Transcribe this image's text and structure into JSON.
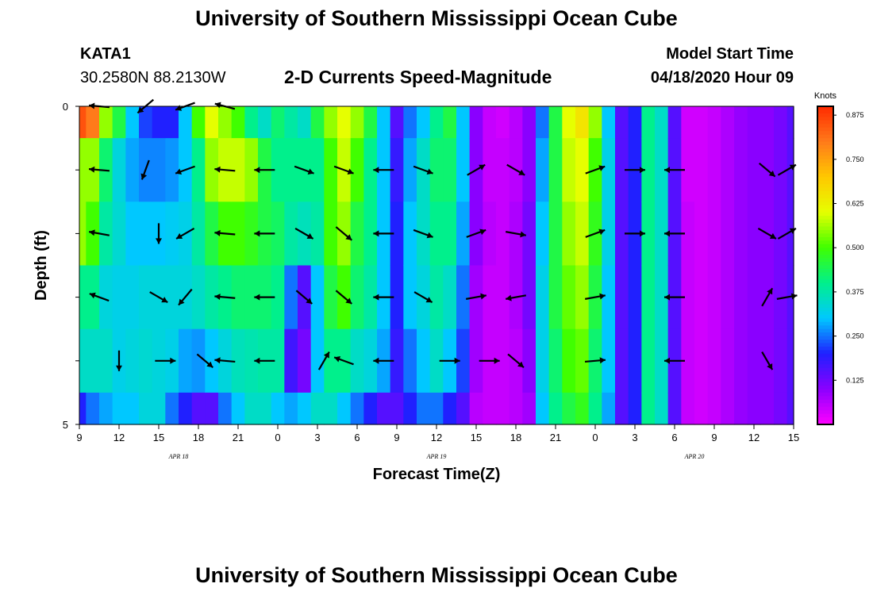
{
  "header": {
    "title": "University of Southern Mississippi Ocean Cube",
    "station": "KATA1",
    "coords": "30.2580N 88.2130W",
    "subtitle": "2-D Currents Speed-Magnitude",
    "model_label": "Model Start Time",
    "model_time": "04/18/2020 Hour 09"
  },
  "footer": {
    "title": "University of Southern Mississippi Ocean Cube"
  },
  "colorbar": {
    "unit": "Knots",
    "ticks": [
      "0.875",
      "0.750",
      "0.625",
      "0.500",
      "0.375",
      "0.250",
      "0.125"
    ],
    "min": 0.0,
    "max": 0.9,
    "colors": [
      "#ff00ff",
      "#8a00ff",
      "#2020ff",
      "#00c8ff",
      "#00f08c",
      "#40ff00",
      "#e6ff00",
      "#ffc800",
      "#ff7a1a",
      "#ff2a00"
    ]
  },
  "chart_data": {
    "type": "heatmap",
    "title": "2-D Currents Speed-Magnitude",
    "xlabel": "Forecast Time(Z)",
    "ylabel": "Depth (ft)",
    "x_tick_labels": [
      "9",
      "12",
      "15",
      "18",
      "21",
      "0",
      "3",
      "6",
      "9",
      "12",
      "15",
      "18",
      "21",
      "0",
      "3",
      "6",
      "9",
      "12",
      "15"
    ],
    "x_range_hours": [
      0,
      54
    ],
    "y_tick_labels": [
      "0",
      "5"
    ],
    "y_range": [
      0,
      5
    ],
    "date_labels": [
      {
        "label": "APR 18",
        "hour": 7.5
      },
      {
        "label": "APR 19",
        "hour": 27
      },
      {
        "label": "APR 20",
        "hour": 46.5
      }
    ],
    "depths": [
      0,
      1,
      2,
      3,
      4,
      5
    ],
    "speed_columns": [
      {
        "hour": 0,
        "speeds": [
          0.85,
          0.55,
          0.55,
          0.4,
          0.35,
          0.2
        ]
      },
      {
        "hour": 1,
        "speeds": [
          0.8,
          0.55,
          0.5,
          0.4,
          0.35,
          0.25
        ]
      },
      {
        "hour": 2,
        "speeds": [
          0.55,
          0.42,
          0.38,
          0.33,
          0.35,
          0.28
        ]
      },
      {
        "hour": 3,
        "speeds": [
          0.45,
          0.33,
          0.34,
          0.32,
          0.32,
          0.3
        ]
      },
      {
        "hour": 4,
        "speeds": [
          0.3,
          0.28,
          0.3,
          0.32,
          0.33,
          0.3
        ]
      },
      {
        "hour": 5,
        "speeds": [
          0.22,
          0.26,
          0.3,
          0.33,
          0.34,
          0.33
        ]
      },
      {
        "hour": 6,
        "speeds": [
          0.2,
          0.26,
          0.3,
          0.33,
          0.33,
          0.33
        ]
      },
      {
        "hour": 7,
        "speeds": [
          0.2,
          0.27,
          0.31,
          0.33,
          0.32,
          0.25
        ]
      },
      {
        "hour": 8,
        "speeds": [
          0.3,
          0.3,
          0.32,
          0.33,
          0.28,
          0.2
        ]
      },
      {
        "hour": 9,
        "speeds": [
          0.5,
          0.4,
          0.38,
          0.35,
          0.27,
          0.15
        ]
      },
      {
        "hour": 10,
        "speeds": [
          0.6,
          0.55,
          0.45,
          0.38,
          0.3,
          0.15
        ]
      },
      {
        "hour": 11,
        "speeds": [
          0.55,
          0.58,
          0.5,
          0.4,
          0.33,
          0.25
        ]
      },
      {
        "hour": 12,
        "speeds": [
          0.5,
          0.58,
          0.5,
          0.42,
          0.36,
          0.3
        ]
      },
      {
        "hour": 13,
        "speeds": [
          0.4,
          0.55,
          0.48,
          0.42,
          0.37,
          0.35
        ]
      },
      {
        "hour": 14,
        "speeds": [
          0.35,
          0.45,
          0.45,
          0.42,
          0.38,
          0.35
        ]
      },
      {
        "hour": 15,
        "speeds": [
          0.42,
          0.4,
          0.43,
          0.4,
          0.38,
          0.3
        ]
      },
      {
        "hour": 16,
        "speeds": [
          0.38,
          0.4,
          0.38,
          0.25,
          0.17,
          0.28
        ]
      },
      {
        "hour": 17,
        "speeds": [
          0.35,
          0.4,
          0.36,
          0.15,
          0.12,
          0.3
        ]
      },
      {
        "hour": 18,
        "speeds": [
          0.45,
          0.4,
          0.38,
          0.3,
          0.3,
          0.35
        ]
      },
      {
        "hour": 19,
        "speeds": [
          0.55,
          0.5,
          0.5,
          0.45,
          0.4,
          0.35
        ]
      },
      {
        "hour": 20,
        "speeds": [
          0.6,
          0.58,
          0.55,
          0.5,
          0.4,
          0.3
        ]
      },
      {
        "hour": 21,
        "speeds": [
          0.55,
          0.5,
          0.45,
          0.42,
          0.35,
          0.25
        ]
      },
      {
        "hour": 22,
        "speeds": [
          0.45,
          0.4,
          0.4,
          0.38,
          0.33,
          0.2
        ]
      },
      {
        "hour": 23,
        "speeds": [
          0.3,
          0.3,
          0.3,
          0.3,
          0.28,
          0.15
        ]
      },
      {
        "hour": 24,
        "speeds": [
          0.15,
          0.18,
          0.2,
          0.2,
          0.18,
          0.15
        ]
      },
      {
        "hour": 25,
        "speeds": [
          0.25,
          0.28,
          0.3,
          0.3,
          0.25,
          0.2
        ]
      },
      {
        "hour": 26,
        "speeds": [
          0.3,
          0.35,
          0.35,
          0.33,
          0.3,
          0.25
        ]
      },
      {
        "hour": 27,
        "speeds": [
          0.4,
          0.42,
          0.4,
          0.38,
          0.35,
          0.25
        ]
      },
      {
        "hour": 28,
        "speeds": [
          0.45,
          0.42,
          0.4,
          0.35,
          0.3,
          0.2
        ]
      },
      {
        "hour": 29,
        "speeds": [
          0.3,
          0.3,
          0.28,
          0.25,
          0.22,
          0.15
        ]
      },
      {
        "hour": 30,
        "speeds": [
          0.1,
          0.1,
          0.1,
          0.08,
          0.08,
          0.06
        ]
      },
      {
        "hour": 31,
        "speeds": [
          0.05,
          0.05,
          0.06,
          0.05,
          0.05,
          0.05
        ]
      },
      {
        "hour": 32,
        "speeds": [
          0.04,
          0.05,
          0.05,
          0.05,
          0.05,
          0.05
        ]
      },
      {
        "hour": 33,
        "speeds": [
          0.06,
          0.06,
          0.07,
          0.07,
          0.06,
          0.06
        ]
      },
      {
        "hour": 34,
        "speeds": [
          0.1,
          0.1,
          0.12,
          0.12,
          0.1,
          0.08
        ]
      },
      {
        "hour": 35,
        "speeds": [
          0.25,
          0.28,
          0.3,
          0.32,
          0.32,
          0.3
        ]
      },
      {
        "hour": 36,
        "speeds": [
          0.45,
          0.45,
          0.45,
          0.45,
          0.42,
          0.4
        ]
      },
      {
        "hour": 37,
        "speeds": [
          0.6,
          0.58,
          0.55,
          0.52,
          0.5,
          0.45
        ]
      },
      {
        "hour": 38,
        "speeds": [
          0.65,
          0.6,
          0.58,
          0.55,
          0.52,
          0.48
        ]
      },
      {
        "hour": 39,
        "speeds": [
          0.55,
          0.5,
          0.48,
          0.45,
          0.42,
          0.4
        ]
      },
      {
        "hour": 40,
        "speeds": [
          0.3,
          0.32,
          0.32,
          0.3,
          0.3,
          0.28
        ]
      },
      {
        "hour": 41,
        "speeds": [
          0.15,
          0.15,
          0.15,
          0.15,
          0.15,
          0.15
        ]
      },
      {
        "hour": 42,
        "speeds": [
          0.2,
          0.2,
          0.2,
          0.2,
          0.2,
          0.2
        ]
      },
      {
        "hour": 43,
        "speeds": [
          0.4,
          0.4,
          0.4,
          0.4,
          0.4,
          0.4
        ]
      },
      {
        "hour": 44,
        "speeds": [
          0.35,
          0.35,
          0.35,
          0.35,
          0.35,
          0.35
        ]
      },
      {
        "hour": 45,
        "speeds": [
          0.15,
          0.15,
          0.15,
          0.15,
          0.15,
          0.15
        ]
      },
      {
        "hour": 46,
        "speeds": [
          0.04,
          0.04,
          0.05,
          0.05,
          0.05,
          0.05
        ]
      },
      {
        "hour": 47,
        "speeds": [
          0.04,
          0.04,
          0.04,
          0.04,
          0.04,
          0.04
        ]
      },
      {
        "hour": 48,
        "speeds": [
          0.05,
          0.05,
          0.05,
          0.05,
          0.05,
          0.05
        ]
      },
      {
        "hour": 49,
        "speeds": [
          0.07,
          0.07,
          0.07,
          0.07,
          0.07,
          0.07
        ]
      },
      {
        "hour": 50,
        "speeds": [
          0.09,
          0.09,
          0.09,
          0.09,
          0.09,
          0.09
        ]
      },
      {
        "hour": 51,
        "speeds": [
          0.1,
          0.1,
          0.1,
          0.1,
          0.1,
          0.1
        ]
      },
      {
        "hour": 52,
        "speeds": [
          0.1,
          0.1,
          0.1,
          0.1,
          0.1,
          0.1
        ]
      },
      {
        "hour": 53,
        "speeds": [
          0.12,
          0.12,
          0.12,
          0.12,
          0.12,
          0.12
        ]
      },
      {
        "hour": 54,
        "speeds": [
          0.15,
          0.15,
          0.15,
          0.15,
          0.15,
          0.15
        ]
      }
    ],
    "vectors": [
      {
        "hour": 1.5,
        "depth": 0,
        "dir_deg": 175
      },
      {
        "hour": 1.5,
        "depth": 1,
        "dir_deg": 175
      },
      {
        "hour": 1.5,
        "depth": 2,
        "dir_deg": 170
      },
      {
        "hour": 1.5,
        "depth": 3,
        "dir_deg": 160
      },
      {
        "hour": 5,
        "depth": 0,
        "dir_deg": 220
      },
      {
        "hour": 5,
        "depth": 1,
        "dir_deg": 250
      },
      {
        "hour": 6,
        "depth": 2,
        "dir_deg": 270
      },
      {
        "hour": 6,
        "depth": 3,
        "dir_deg": 330
      },
      {
        "hour": 3,
        "depth": 4,
        "dir_deg": 270
      },
      {
        "hour": 6.5,
        "depth": 4,
        "dir_deg": 0
      },
      {
        "hour": 8,
        "depth": 0,
        "dir_deg": 200
      },
      {
        "hour": 8,
        "depth": 1,
        "dir_deg": 200
      },
      {
        "hour": 8,
        "depth": 2,
        "dir_deg": 210
      },
      {
        "hour": 8,
        "depth": 3,
        "dir_deg": 230
      },
      {
        "hour": 9.5,
        "depth": 4,
        "dir_deg": 320
      },
      {
        "hour": 11,
        "depth": 0,
        "dir_deg": 165
      },
      {
        "hour": 11,
        "depth": 1,
        "dir_deg": 175
      },
      {
        "hour": 11,
        "depth": 2,
        "dir_deg": 175
      },
      {
        "hour": 11,
        "depth": 3,
        "dir_deg": 175
      },
      {
        "hour": 11,
        "depth": 4,
        "dir_deg": 175
      },
      {
        "hour": 14,
        "depth": 1,
        "dir_deg": 180
      },
      {
        "hour": 14,
        "depth": 2,
        "dir_deg": 180
      },
      {
        "hour": 14,
        "depth": 3,
        "dir_deg": 180
      },
      {
        "hour": 14,
        "depth": 4,
        "dir_deg": 180
      },
      {
        "hour": 17,
        "depth": 1,
        "dir_deg": 340
      },
      {
        "hour": 17,
        "depth": 2,
        "dir_deg": 330
      },
      {
        "hour": 17,
        "depth": 3,
        "dir_deg": 320
      },
      {
        "hour": 18.5,
        "depth": 4,
        "dir_deg": 60
      },
      {
        "hour": 20,
        "depth": 1,
        "dir_deg": 340
      },
      {
        "hour": 20,
        "depth": 2,
        "dir_deg": 320
      },
      {
        "hour": 20,
        "depth": 3,
        "dir_deg": 320
      },
      {
        "hour": 20,
        "depth": 4,
        "dir_deg": 160
      },
      {
        "hour": 23,
        "depth": 1,
        "dir_deg": 180
      },
      {
        "hour": 23,
        "depth": 2,
        "dir_deg": 180
      },
      {
        "hour": 23,
        "depth": 3,
        "dir_deg": 180
      },
      {
        "hour": 23,
        "depth": 4,
        "dir_deg": 180
      },
      {
        "hour": 26,
        "depth": 1,
        "dir_deg": 340
      },
      {
        "hour": 26,
        "depth": 2,
        "dir_deg": 340
      },
      {
        "hour": 26,
        "depth": 3,
        "dir_deg": 330
      },
      {
        "hour": 28,
        "depth": 4,
        "dir_deg": 0
      },
      {
        "hour": 30,
        "depth": 1,
        "dir_deg": 30
      },
      {
        "hour": 30,
        "depth": 2,
        "dir_deg": 20
      },
      {
        "hour": 30,
        "depth": 3,
        "dir_deg": 10
      },
      {
        "hour": 31,
        "depth": 4,
        "dir_deg": 0
      },
      {
        "hour": 33,
        "depth": 1,
        "dir_deg": 330
      },
      {
        "hour": 33,
        "depth": 2,
        "dir_deg": 350
      },
      {
        "hour": 33,
        "depth": 3,
        "dir_deg": 190
      },
      {
        "hour": 33,
        "depth": 4,
        "dir_deg": 320
      },
      {
        "hour": 39,
        "depth": 1,
        "dir_deg": 20
      },
      {
        "hour": 39,
        "depth": 2,
        "dir_deg": 20
      },
      {
        "hour": 39,
        "depth": 3,
        "dir_deg": 10
      },
      {
        "hour": 39,
        "depth": 4,
        "dir_deg": 5
      },
      {
        "hour": 42,
        "depth": 1,
        "dir_deg": 0
      },
      {
        "hour": 42,
        "depth": 2,
        "dir_deg": 0
      },
      {
        "hour": 45,
        "depth": 1,
        "dir_deg": 180
      },
      {
        "hour": 45,
        "depth": 2,
        "dir_deg": 180
      },
      {
        "hour": 45,
        "depth": 3,
        "dir_deg": 180
      },
      {
        "hour": 45,
        "depth": 4,
        "dir_deg": 180
      },
      {
        "hour": 52,
        "depth": 1,
        "dir_deg": 320
      },
      {
        "hour": 52,
        "depth": 2,
        "dir_deg": 330
      },
      {
        "hour": 52,
        "depth": 3,
        "dir_deg": 60
      },
      {
        "hour": 52,
        "depth": 4,
        "dir_deg": 300
      },
      {
        "hour": 53.5,
        "depth": 1,
        "dir_deg": 30
      },
      {
        "hour": 53.5,
        "depth": 2,
        "dir_deg": 30
      },
      {
        "hour": 53.5,
        "depth": 3,
        "dir_deg": 10
      }
    ]
  }
}
